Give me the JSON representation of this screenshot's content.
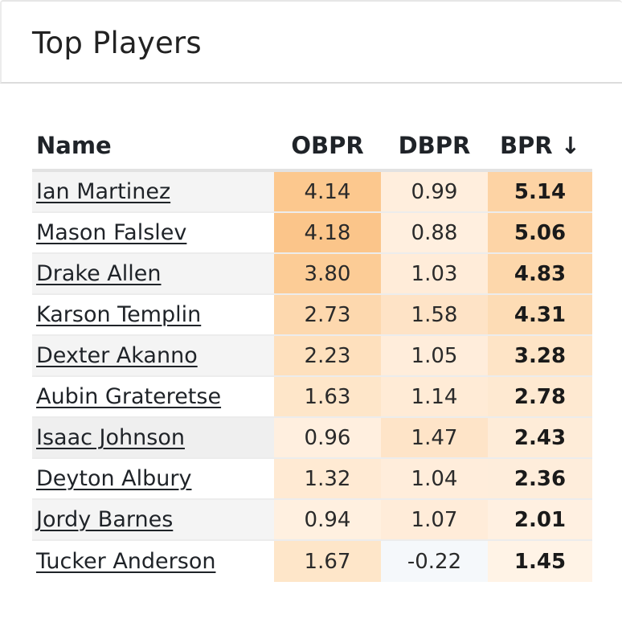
{
  "card": {
    "title": "Top Players"
  },
  "table": {
    "columns": {
      "name": "Name",
      "obpr": "OBPR",
      "dbpr": "DBPR",
      "bpr": "BPR ↓"
    },
    "rows": [
      {
        "name": "Ian Martinez",
        "obpr": "4.14",
        "dbpr": "0.99",
        "bpr": "5.14",
        "name_bg": "#f4f4f4",
        "obpr_bg": "#fcc88e",
        "dbpr_bg": "#ffeedd",
        "bpr_bg": "#fdd3a4"
      },
      {
        "name": "Mason Falslev",
        "obpr": "4.18",
        "dbpr": "0.88",
        "bpr": "5.06",
        "name_bg": "#ffffff",
        "obpr_bg": "#fbc58a",
        "dbpr_bg": "#ffefdf",
        "bpr_bg": "#fdd4a6"
      },
      {
        "name": "Drake Allen",
        "obpr": "3.80",
        "dbpr": "1.03",
        "bpr": "4.83",
        "name_bg": "#f4f4f4",
        "obpr_bg": "#fccc96",
        "dbpr_bg": "#ffecd9",
        "bpr_bg": "#fdd7ab"
      },
      {
        "name": "Karson Templin",
        "obpr": "2.73",
        "dbpr": "1.58",
        "bpr": "4.31",
        "name_bg": "#ffffff",
        "obpr_bg": "#fdd8ae",
        "dbpr_bg": "#fee3c6",
        "bpr_bg": "#fddcb5"
      },
      {
        "name": "Dexter Akanno",
        "obpr": "2.23",
        "dbpr": "1.05",
        "bpr": "3.28",
        "name_bg": "#f4f4f4",
        "obpr_bg": "#fee0bd",
        "dbpr_bg": "#ffeddb",
        "bpr_bg": "#fee4c6"
      },
      {
        "name": "Aubin Grateretse",
        "obpr": "1.63",
        "dbpr": "1.14",
        "bpr": "2.78",
        "name_bg": "#ffffff",
        "obpr_bg": "#fee6c9",
        "dbpr_bg": "#ffebd6",
        "bpr_bg": "#fee9d1"
      },
      {
        "name": "Isaac Johnson",
        "obpr": "0.96",
        "dbpr": "1.47",
        "bpr": "2.43",
        "name_bg": "#efefef",
        "obpr_bg": "#ffefdf",
        "dbpr_bg": "#fee4c8",
        "bpr_bg": "#feecd8"
      },
      {
        "name": "Deyton Albury",
        "obpr": "1.32",
        "dbpr": "1.04",
        "bpr": "2.36",
        "name_bg": "#ffffff",
        "obpr_bg": "#ffead3",
        "dbpr_bg": "#ffeddb",
        "bpr_bg": "#feeddb"
      },
      {
        "name": "Jordy Barnes",
        "obpr": "0.94",
        "dbpr": "1.07",
        "bpr": "2.01",
        "name_bg": "#f4f4f4",
        "obpr_bg": "#fff0e0",
        "dbpr_bg": "#ffecd9",
        "bpr_bg": "#fff0e1"
      },
      {
        "name": "Tucker Anderson",
        "obpr": "1.67",
        "dbpr": "-0.22",
        "bpr": "1.45",
        "name_bg": "#ffffff",
        "obpr_bg": "#fee6c9",
        "dbpr_bg": "#f5f8fb",
        "bpr_bg": "#fff3e6"
      }
    ]
  }
}
